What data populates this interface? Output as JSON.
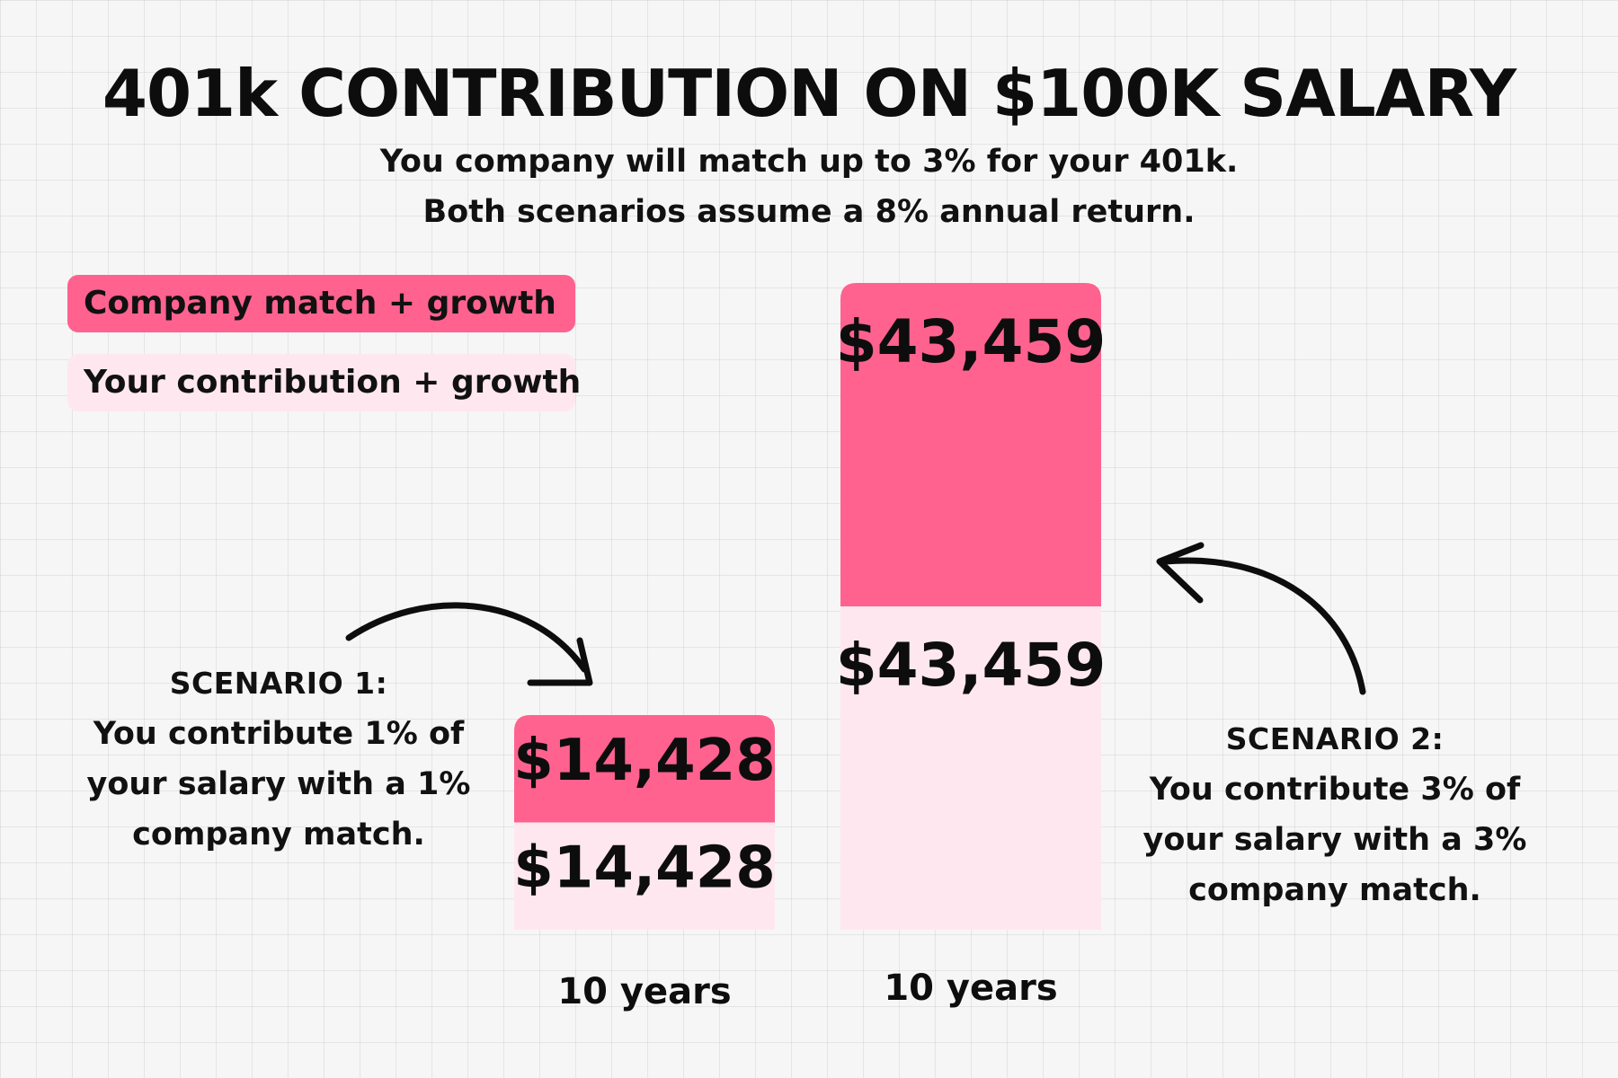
{
  "title": "401k CONTRIBUTION ON $100K SALARY",
  "subtitle_lines": [
    "You company will match up to 3% for your 401k.",
    "Both scenarios assume a 8% annual return."
  ],
  "legend": [
    {
      "label": "Company match + growth",
      "color": "#ff628f"
    },
    {
      "label": "Your contribution + growth",
      "color": "#ffe7ef"
    }
  ],
  "scenarios": [
    {
      "heading": "SCENARIO 1:",
      "lines": [
        "You contribute 1% of",
        "your salary with a 1%",
        "company match."
      ]
    },
    {
      "heading": "SCENARIO 2:",
      "lines": [
        "You contribute 3% of",
        "your salary with a 3%",
        "company match."
      ]
    }
  ],
  "chart_data": {
    "type": "bar",
    "stacked": true,
    "categories": [
      "10 years",
      "10 years"
    ],
    "series": [
      {
        "name": "Your contribution + growth",
        "values": [
          14428,
          43459
        ],
        "labels": [
          "$14,428",
          "$43,459"
        ],
        "color": "#ffe7ef"
      },
      {
        "name": "Company match + growth",
        "values": [
          14428,
          43459
        ],
        "labels": [
          "$14,428",
          "$43,459"
        ],
        "color": "#ff628f"
      }
    ],
    "ylim": [
      0,
      86918
    ],
    "grid": true,
    "legend_position": "top-left"
  }
}
